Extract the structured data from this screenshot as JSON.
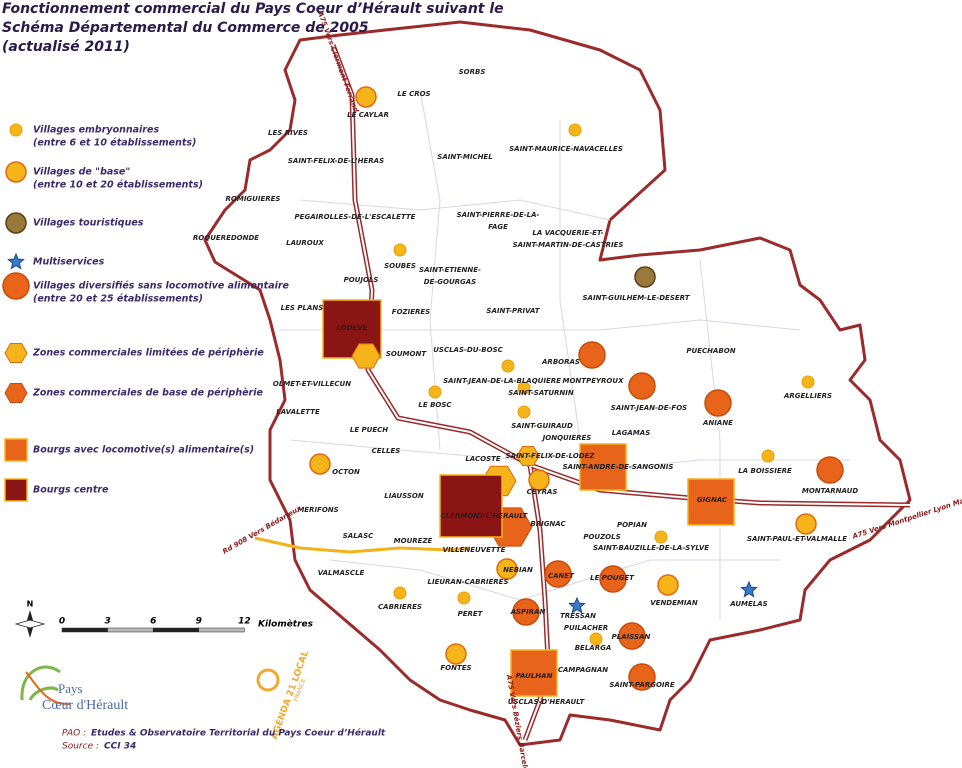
{
  "title": [
    "Fonctionnement commercial du Pays Coeur d’Hérault suivant le",
    "Schéma Départemental du Commerce de 2005",
    "(actualisé 2011)"
  ],
  "legend": [
    {
      "label": [
        "Villages embryonnaires",
        "(entre 6 et 10  établissements)"
      ]
    },
    {
      "label": [
        "Villages de \"base\"",
        " (entre 10 et 20  établissements)"
      ]
    },
    {
      "label": [
        "Villages touristiques"
      ]
    },
    {
      "label": [
        "Multiservices"
      ]
    },
    {
      "label": [
        "Villages diversifiés sans locomotive alimentaire",
        "(entre 20 et 25 établissements)"
      ]
    },
    {
      "label": [
        "Zones commerciales limitées de périphèrie"
      ]
    },
    {
      "label": [
        "Zones commerciales de base de périphèrie"
      ]
    },
    {
      "label": [
        "Bourgs avec locomotive(s) alimentaire(s)"
      ]
    },
    {
      "label": [
        "Bourgs centre"
      ]
    }
  ],
  "places": [
    {
      "name": "SORBS"
    },
    {
      "name": "LE CROS"
    },
    {
      "name": "LE CAYLAR"
    },
    {
      "name": "LES RIVES"
    },
    {
      "name": "SAINT-FELIX-DE-L'HERAS"
    },
    {
      "name": "SAINT-MICHEL"
    },
    {
      "name": "SAINT-MAURICE-NAVACELLES"
    },
    {
      "name": "ROMIGUIERES"
    },
    {
      "name": "PEGAIROLLES-DE-L'ESCALETTE"
    },
    {
      "name": [
        "SAINT-PIERRE-DE-LA-",
        "FAGE"
      ]
    },
    {
      "name": "ROQUEREDONDE"
    },
    {
      "name": "LAUROUX"
    },
    {
      "name": "SOUBES"
    },
    {
      "name": [
        "LA VACQUERIE-ET-",
        "SAINT-MARTIN-DE-CASTRIES"
      ]
    },
    {
      "name": [
        "SAINT-ETIENNE-",
        "DE-GOURGAS"
      ]
    },
    {
      "name": "POUJOLS"
    },
    {
      "name": "SAINT-GUILHEM-LE-DESERT"
    },
    {
      "name": "LES PLANS"
    },
    {
      "name": "FOZIERES"
    },
    {
      "name": "SAINT-PRIVAT"
    },
    {
      "name": "LODEVE"
    },
    {
      "name": "SOUMONT"
    },
    {
      "name": "USCLAS-DU-BOSC"
    },
    {
      "name": "ARBORAS"
    },
    {
      "name": "PUECHABON"
    },
    {
      "name": "OLMET-ET-VILLECUN"
    },
    {
      "name": "SAINT-JEAN-DE-LA-BLAQUIERE"
    },
    {
      "name": "MONTPEYROUX"
    },
    {
      "name": "ARGELLIERS"
    },
    {
      "name": "LAVALETTE"
    },
    {
      "name": "LE BOSC"
    },
    {
      "name": "SAINT-SATURNIN"
    },
    {
      "name": "SAINT-JEAN-DE-FOS"
    },
    {
      "name": "ANIANE"
    },
    {
      "name": "LE PUECH"
    },
    {
      "name": "SAINT-GUIRAUD"
    },
    {
      "name": "JONQUIERES"
    },
    {
      "name": "LAGAMAS"
    },
    {
      "name": "CELLES"
    },
    {
      "name": "SAINT-FELIX-DE-LODEZ"
    },
    {
      "name": "SAINT-ANDRE-DE-SANGONIS"
    },
    {
      "name": "LA BOISSIERE"
    },
    {
      "name": "OCTON"
    },
    {
      "name": "LACOSTE"
    },
    {
      "name": "MONTARNAUD"
    },
    {
      "name": "GIGNAC"
    },
    {
      "name": "CEYRAS"
    },
    {
      "name": "MERIFONS"
    },
    {
      "name": "LIAUSSON"
    },
    {
      "name": "CLERMONT-L'HERAULT"
    },
    {
      "name": "BRIGNAC"
    },
    {
      "name": "POPIAN"
    },
    {
      "name": "SAINT-PAUL-ET-VALMALLE"
    },
    {
      "name": "SALASC"
    },
    {
      "name": "MOUREZE"
    },
    {
      "name": "POUZOLS"
    },
    {
      "name": "SAINT-BAUZILLE-DE-LA-SYLVE"
    },
    {
      "name": "VILLENEUVETTE"
    },
    {
      "name": "VALMASCLE"
    },
    {
      "name": "NEBIAN"
    },
    {
      "name": "CANET"
    },
    {
      "name": "LE POUGET"
    },
    {
      "name": "LIEURAN-CABRIERES"
    },
    {
      "name": "VENDEMIAN"
    },
    {
      "name": "CABRIERES"
    },
    {
      "name": "PERET"
    },
    {
      "name": "ASPIRAN"
    },
    {
      "name": "TRESSAN"
    },
    {
      "name": "AUMELAS"
    },
    {
      "name": "PUILACHER"
    },
    {
      "name": "PLAISSAN"
    },
    {
      "name": "BELARGA"
    },
    {
      "name": "FONTES"
    },
    {
      "name": "CAMPAGNAN"
    },
    {
      "name": "PAULHAN"
    },
    {
      "name": "SAINT-PARGOIRE"
    },
    {
      "name": "USCLAS-D'HERAULT"
    }
  ],
  "roads": [
    "A75 Vers Clermont Ferrand",
    "A75 Vers Montpellier Lyon Marseille",
    "A75 Vers Béziers Barcelone",
    "Rd 908 Vers Bédarieux"
  ],
  "scale": {
    "ticks": [
      0,
      3,
      6,
      9,
      12
    ],
    "unit": "Kilomètres"
  },
  "north": "N",
  "logos": {
    "pays": "Pays",
    "coeur": "Cœur d'Hérault",
    "agenda": "AGENDA 21 LOCAL",
    "france": "FRANCE"
  },
  "footer": {
    "credit_label": "PAO :",
    "credit": "Etudes & Observatoire Territorial du Pays Coeur d’Hérault",
    "source_label": "Source :",
    "source": "CCI 34"
  }
}
